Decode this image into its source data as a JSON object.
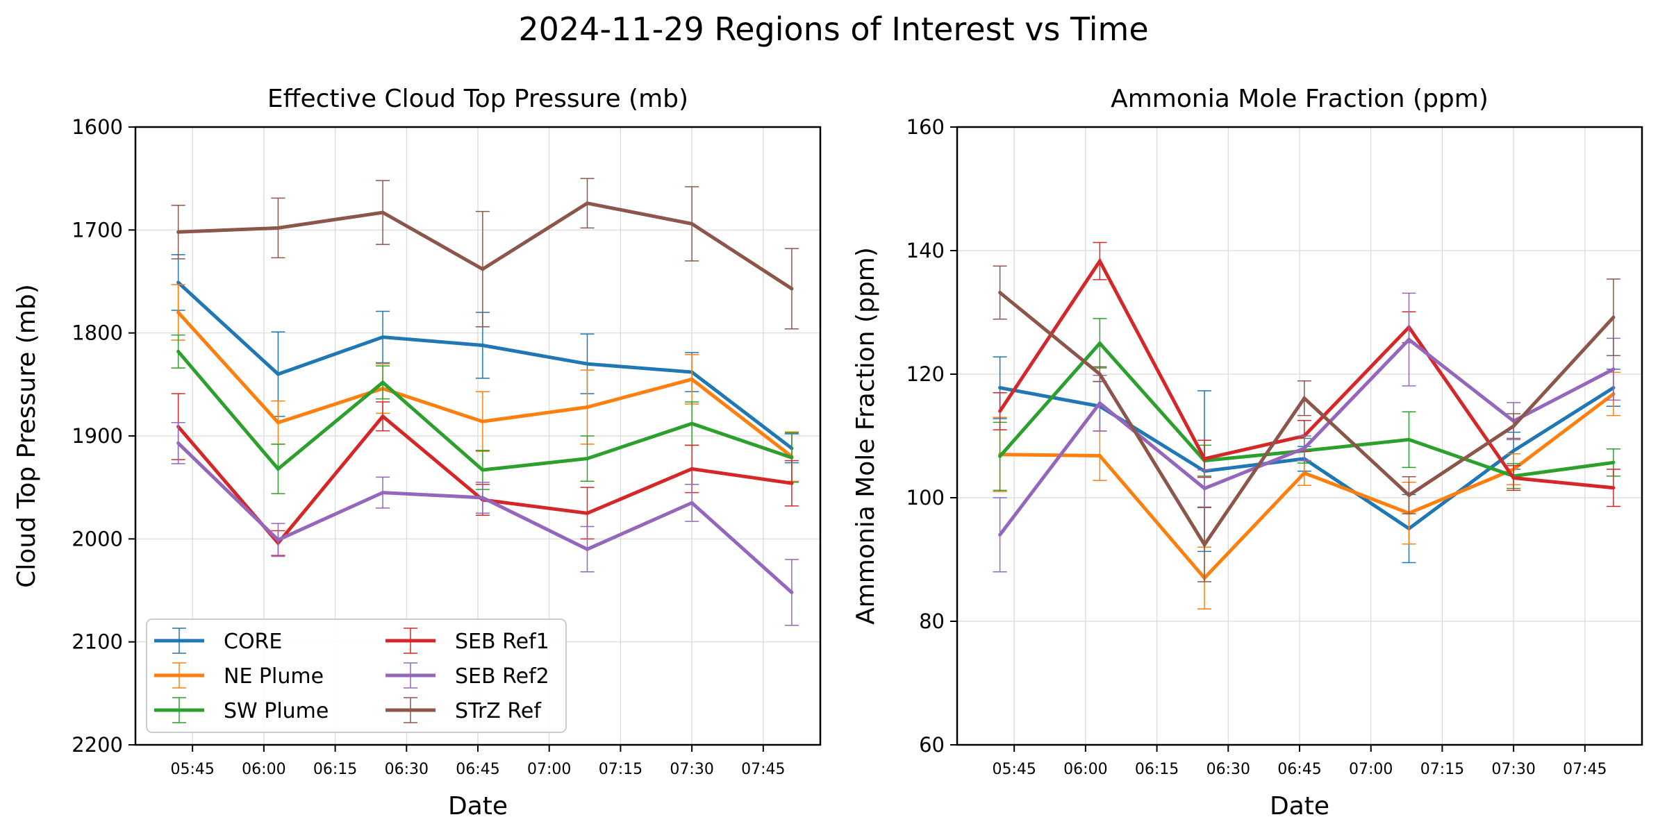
{
  "suptitle": "2024-11-29 Regions of Interest vs Time",
  "colors": {
    "CORE": "#1f77b4",
    "NE Plume": "#ff7f0e",
    "SW Plume": "#2ca02c",
    "SEB Ref1": "#d62728",
    "SEB Ref2": "#9467bd",
    "STrZ Ref": "#8c564b"
  },
  "chart_data": [
    {
      "type": "line",
      "title": "Effective Cloud Top Pressure (mb)",
      "xlabel": "Date",
      "ylabel": "Cloud Top Pressure (mb)",
      "y_inverted": true,
      "ylim": [
        1600,
        2200
      ],
      "yticks": [
        "1600",
        "1700",
        "1800",
        "1900",
        "2000",
        "2100",
        "2200"
      ],
      "xlim": [
        "05:33",
        "07:57"
      ],
      "xticks": [
        "05:45",
        "06:00",
        "06:15",
        "06:30",
        "06:45",
        "07:00",
        "07:15",
        "07:30",
        "07:45"
      ],
      "grid": true,
      "legend": {
        "placement": "lower-left",
        "columns": 2
      },
      "x": [
        "05:42",
        "06:03",
        "06:25",
        "06:46",
        "07:08",
        "07:30",
        "07:51"
      ],
      "series": [
        {
          "name": "CORE",
          "values": [
            1751,
            1840,
            1804,
            1812,
            1830,
            1838,
            1912
          ],
          "errors": [
            27,
            41,
            25,
            32,
            29,
            19,
            14
          ]
        },
        {
          "name": "NE Plume",
          "values": [
            1780,
            1887,
            1854,
            1886,
            1872,
            1845,
            1920
          ],
          "errors": [
            27,
            21,
            24,
            29,
            36,
            24,
            24
          ]
        },
        {
          "name": "SW Plume",
          "values": [
            1818,
            1932,
            1848,
            1933,
            1922,
            1888,
            1921
          ],
          "errors": [
            16,
            24,
            16,
            19,
            22,
            21,
            24
          ]
        },
        {
          "name": "SEB Ref1",
          "values": [
            1891,
            2004,
            1881,
            1962,
            1975,
            1932,
            1946
          ],
          "errors": [
            32,
            12,
            14,
            15,
            25,
            23,
            22
          ]
        },
        {
          "name": "SEB Ref2",
          "values": [
            1907,
            2001,
            1955,
            1960,
            2010,
            1965,
            2052
          ],
          "errors": [
            20,
            16,
            15,
            15,
            22,
            18,
            32
          ]
        },
        {
          "name": "STrZ Ref",
          "values": [
            1702,
            1698,
            1683,
            1738,
            1674,
            1694,
            1757
          ],
          "errors": [
            26,
            29,
            31,
            56,
            24,
            36,
            39
          ]
        }
      ]
    },
    {
      "type": "line",
      "title": "Ammonia Mole Fraction (ppm)",
      "xlabel": "Date",
      "ylabel": "Ammonia Mole Fraction (ppm)",
      "ylim": [
        60,
        160
      ],
      "yticks": [
        "60",
        "80",
        "100",
        "120",
        "140",
        "160"
      ],
      "xlim": [
        "05:33",
        "07:57"
      ],
      "xticks": [
        "05:45",
        "06:00",
        "06:15",
        "06:30",
        "06:45",
        "07:00",
        "07:15",
        "07:30",
        "07:45"
      ],
      "grid": true,
      "x": [
        "05:42",
        "06:03",
        "06:25",
        "06:46",
        "07:08",
        "07:30",
        "07:51"
      ],
      "series": [
        {
          "name": "CORE",
          "values": [
            117.8,
            114.8,
            104.3,
            106.3,
            95.0,
            107.6,
            117.8
          ],
          "errors": [
            5.0,
            4.0,
            13.0,
            2.0,
            5.5,
            3.0,
            3.0
          ]
        },
        {
          "name": "NE Plume",
          "values": [
            107.0,
            106.8,
            87.0,
            104.0,
            97.5,
            104.6,
            116.8
          ],
          "errors": [
            6.0,
            4.0,
            5.0,
            2.0,
            5.0,
            2.5,
            3.5
          ]
        },
        {
          "name": "SW Plume",
          "values": [
            106.7,
            125.0,
            106.0,
            107.6,
            109.4,
            103.5,
            105.7
          ],
          "errors": [
            5.5,
            4.0,
            2.5,
            2.0,
            4.5,
            2.0,
            2.2
          ]
        },
        {
          "name": "SEB Ref1",
          "values": [
            114.0,
            138.3,
            106.3,
            110.0,
            127.6,
            103.2,
            101.6
          ],
          "errors": [
            3.0,
            3.0,
            3.0,
            2.5,
            2.5,
            2.0,
            3.0
          ]
        },
        {
          "name": "SEB Ref2",
          "values": [
            94.0,
            115.3,
            101.5,
            108.0,
            125.6,
            112.4,
            120.8
          ],
          "errors": [
            6.0,
            4.5,
            3.0,
            2.0,
            7.5,
            3.0,
            5.0
          ]
        },
        {
          "name": "STrZ Ref",
          "values": [
            133.2,
            120.0,
            92.4,
            116.1,
            100.4,
            111.6,
            129.2
          ],
          "errors": [
            4.3,
            1.2,
            6.0,
            2.8,
            3.0,
            2.0,
            6.2
          ]
        }
      ]
    }
  ]
}
